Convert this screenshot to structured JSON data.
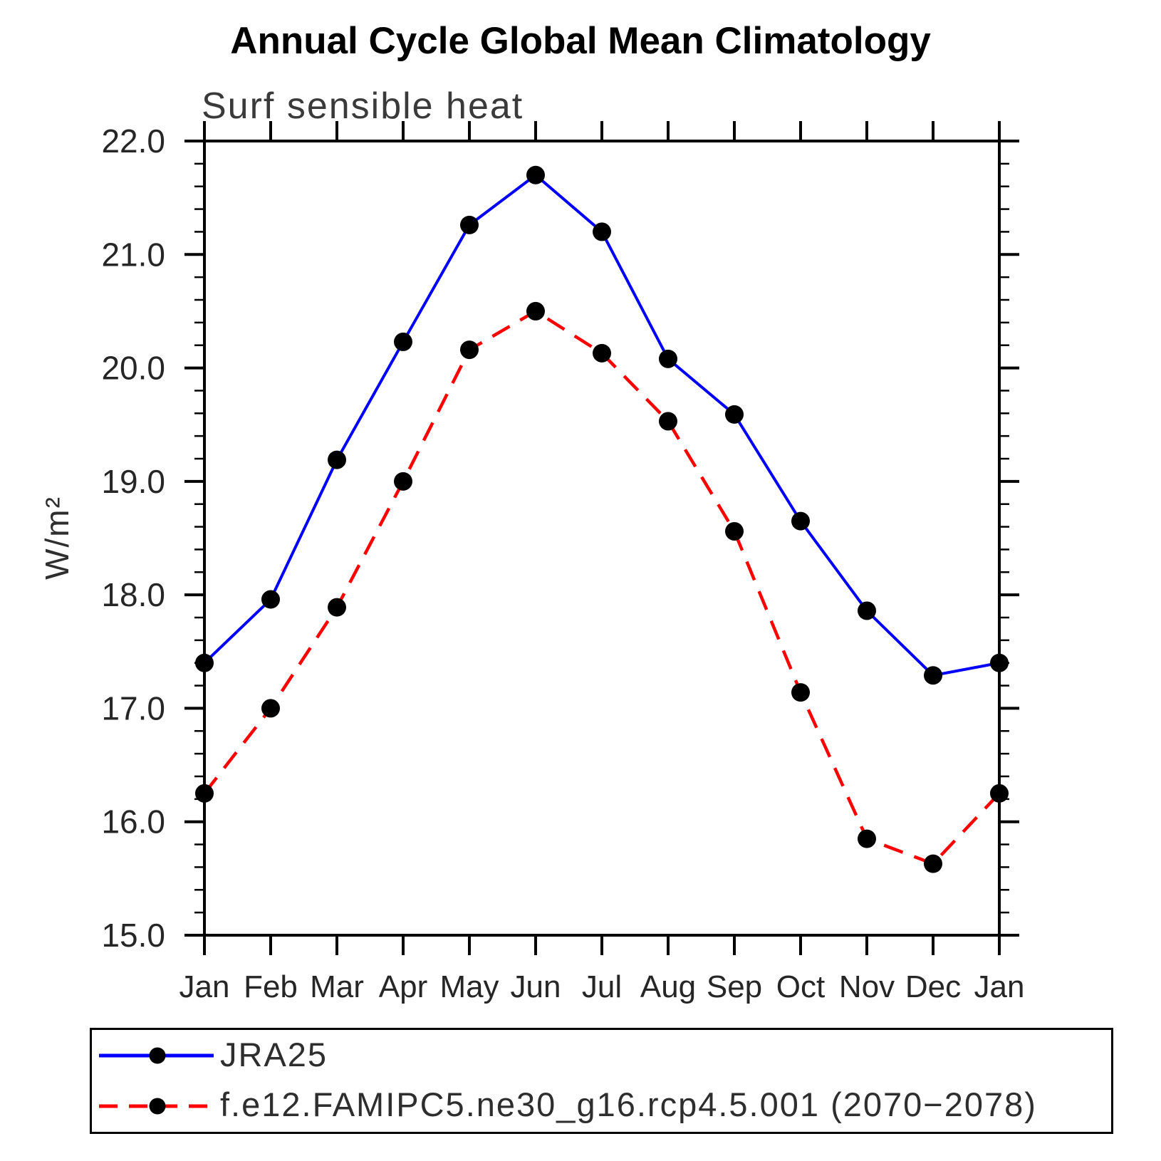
{
  "header": {
    "title": "Annual Cycle Global Mean Climatology",
    "subtitle": "Surf sensible heat"
  },
  "axes": {
    "ylabel": "W/m²",
    "y_tick_labels": [
      "15.0",
      "16.0",
      "17.0",
      "18.0",
      "19.0",
      "20.0",
      "21.0",
      "22.0"
    ],
    "x_tick_labels": [
      "Jan",
      "Feb",
      "Mar",
      "Apr",
      "May",
      "Jun",
      "Jul",
      "Aug",
      "Sep",
      "Oct",
      "Nov",
      "Dec",
      "Jan"
    ]
  },
  "legend": {
    "entries": [
      {
        "label": "JRA25",
        "color": "#0000ff",
        "line_style": "solid",
        "marker": "filled-circle",
        "marker_color": "#000000"
      },
      {
        "label": "f.e12.FAMIPC5.ne30_g16.rcp4.5.001 (2070−2078)",
        "color": "#ff0000",
        "line_style": "dashed",
        "marker": "filled-circle",
        "marker_color": "#000000"
      }
    ]
  },
  "chart_data": {
    "type": "line",
    "title": "Annual Cycle Global Mean Climatology",
    "subtitle": "Surf sensible heat",
    "xlabel": "",
    "ylabel": "W/m²",
    "categories": [
      "Jan",
      "Feb",
      "Mar",
      "Apr",
      "May",
      "Jun",
      "Jul",
      "Aug",
      "Sep",
      "Oct",
      "Nov",
      "Dec",
      "Jan"
    ],
    "series": [
      {
        "name": "JRA25",
        "color": "#0000ff",
        "line_style": "solid",
        "marker": "circle",
        "marker_color": "#000000",
        "values": [
          17.4,
          17.96,
          19.19,
          20.23,
          21.26,
          21.7,
          21.2,
          20.08,
          19.59,
          18.65,
          17.86,
          17.29,
          17.4
        ]
      },
      {
        "name": "f.e12.FAMIPC5.ne30_g16.rcp4.5.001 (2070−2078)",
        "color": "#ff0000",
        "line_style": "dashed",
        "marker": "circle",
        "marker_color": "#000000",
        "values": [
          16.25,
          17.0,
          17.89,
          19.0,
          20.16,
          20.5,
          20.13,
          19.53,
          18.56,
          17.14,
          15.85,
          15.63,
          16.25
        ]
      }
    ],
    "ylim": [
      15.0,
      22.0
    ],
    "y_major_step": 1.0,
    "y_minor_step": 0.2,
    "grid": false,
    "frame_color": "#000000",
    "legend_position": "bottom-left-box"
  }
}
